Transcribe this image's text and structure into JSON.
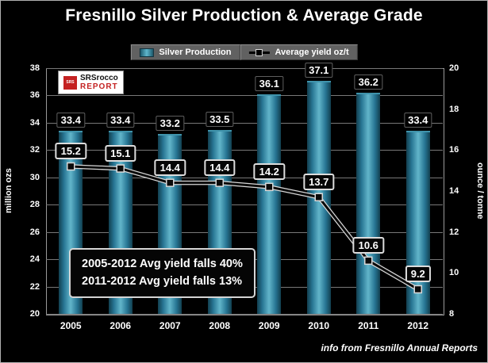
{
  "title": "Fresnillo Silver Production & Average Grade",
  "logo": {
    "icon": "SRS",
    "line1": "SRSrocco",
    "line2": "REPORT"
  },
  "legend": {
    "production": "Silver Production",
    "yield": "Average yield  oz/t"
  },
  "axes": {
    "left_label": "million ozs",
    "right_label": "ounce / tonne"
  },
  "annotation": {
    "line1": "2005-2012 Avg yield falls 40%",
    "line2": "2011-2012 Avg yield falls 13%"
  },
  "footer": "info from Fresnillo Annual Reports",
  "chart_data": {
    "type": "combo",
    "categories": [
      "2005",
      "2006",
      "2007",
      "2008",
      "2009",
      "2010",
      "2011",
      "2012"
    ],
    "series": [
      {
        "name": "Silver Production",
        "type": "bar",
        "axis": "left",
        "unit": "million ozs",
        "color": "#2f86a0",
        "values": [
          33.4,
          33.4,
          33.2,
          33.5,
          36.1,
          37.1,
          36.2,
          33.4
        ]
      },
      {
        "name": "Average yield oz/t",
        "type": "line",
        "axis": "right",
        "unit": "oz/t",
        "color": "#000000",
        "values": [
          15.2,
          15.1,
          14.4,
          14.4,
          14.2,
          13.7,
          10.6,
          9.2
        ]
      }
    ],
    "left_axis": {
      "label": "million ozs",
      "min": 20,
      "max": 38,
      "step": 2
    },
    "right_axis": {
      "label": "ounce / tonne",
      "min": 8,
      "max": 20,
      "step": 2
    },
    "grid": true,
    "legend_position": "top",
    "background": "#000000"
  }
}
